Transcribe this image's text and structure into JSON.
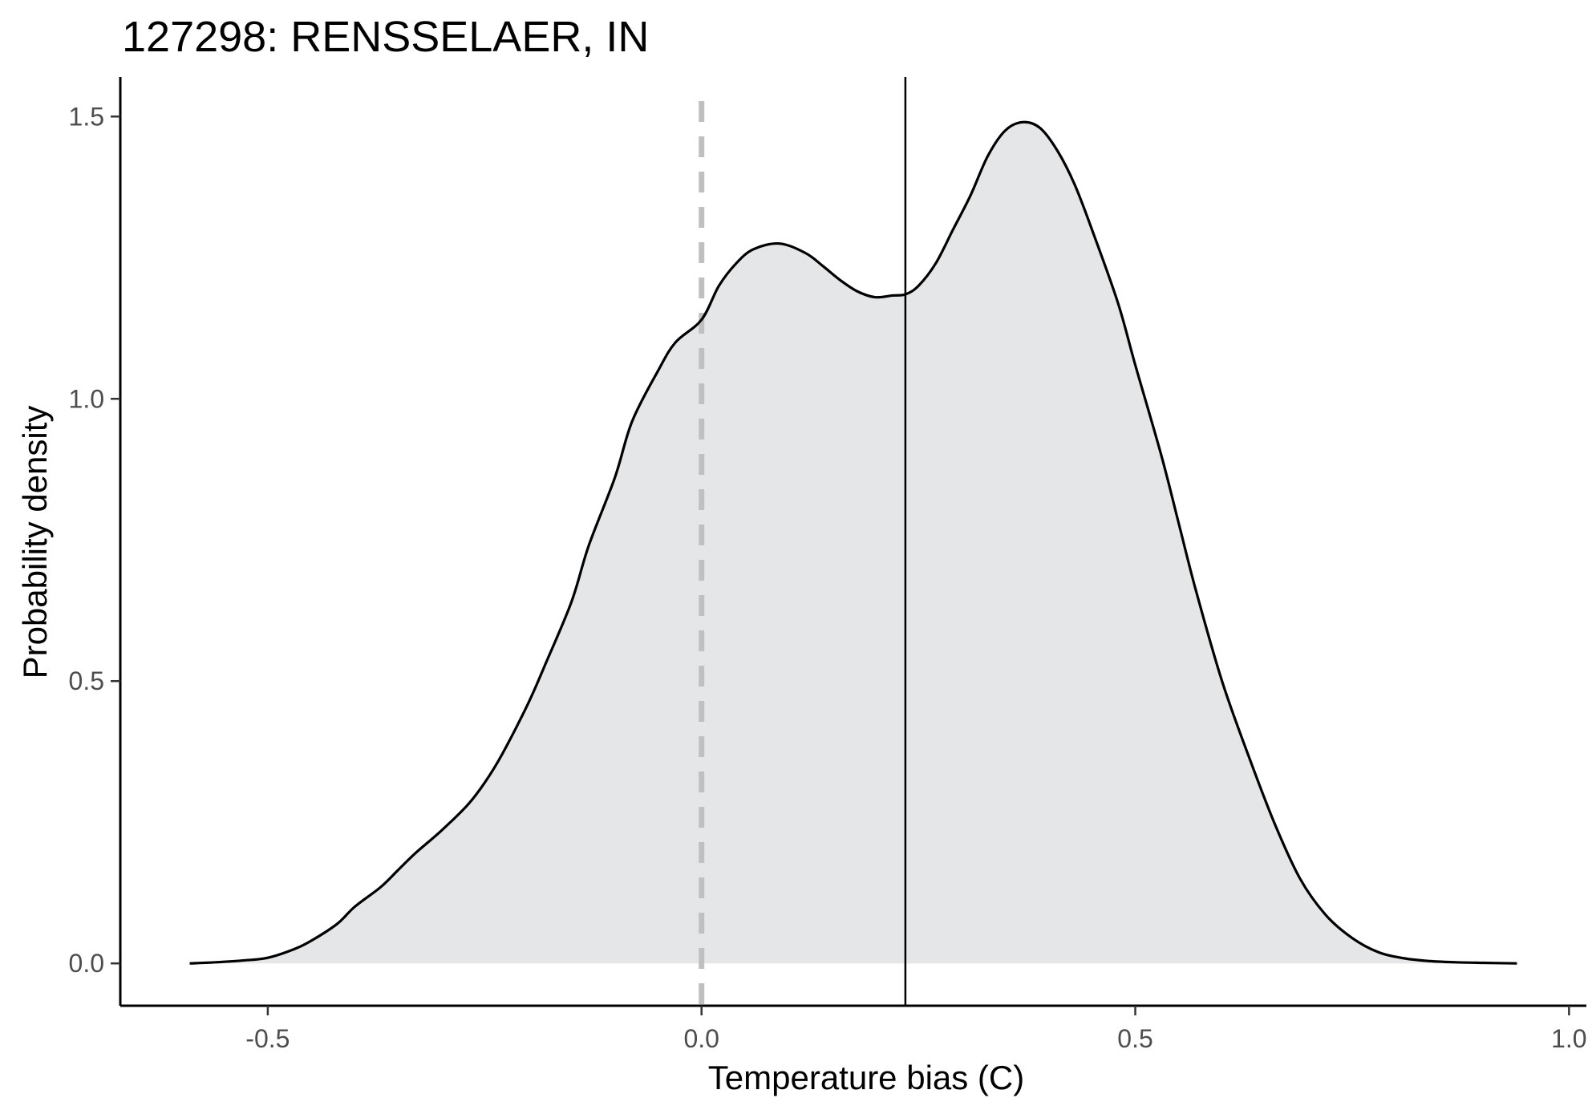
{
  "chart_data": {
    "type": "area",
    "title": "127298: RENSSELAER, IN",
    "xlabel": "Temperature bias (C)",
    "ylabel": "Probability density",
    "xlim": [
      -0.67,
      1.02
    ],
    "ylim": [
      -0.075,
      1.57
    ],
    "x_ticks": [
      -0.5,
      0.0,
      0.5,
      1.0
    ],
    "x_tick_labels": [
      "-0.5",
      "0.0",
      "0.5",
      "1.0"
    ],
    "y_ticks": [
      0.0,
      0.5,
      1.0,
      1.5
    ],
    "y_tick_labels": [
      "0.0",
      "0.5",
      "1.0",
      "1.5"
    ],
    "grid": false,
    "reference_lines": [
      {
        "x": 0.0,
        "style": "dashed",
        "color": "#c0c0c0"
      },
      {
        "x": 0.235,
        "style": "solid",
        "color": "#000000"
      }
    ],
    "fill_color": "#e5e6e7",
    "line_color": "#000000",
    "series": [
      {
        "x": [
          -0.59,
          -0.56,
          -0.53,
          -0.5,
          -0.47,
          -0.45,
          -0.42,
          -0.4,
          -0.37,
          -0.35,
          -0.33,
          -0.3,
          -0.27,
          -0.25,
          -0.23,
          -0.2,
          -0.18,
          -0.15,
          -0.13,
          -0.1,
          -0.08,
          -0.05,
          -0.03,
          0.0,
          0.02,
          0.04,
          0.06,
          0.09,
          0.12,
          0.14,
          0.16,
          0.18,
          0.2,
          0.22,
          0.235,
          0.25,
          0.27,
          0.29,
          0.31,
          0.33,
          0.35,
          0.37,
          0.39,
          0.41,
          0.43,
          0.45,
          0.48,
          0.5,
          0.53,
          0.55,
          0.57,
          0.6,
          0.63,
          0.66,
          0.69,
          0.72,
          0.75,
          0.78,
          0.81,
          0.84,
          0.87,
          0.9,
          0.94
        ],
        "y": [
          0.0,
          0.002,
          0.005,
          0.01,
          0.025,
          0.04,
          0.07,
          0.1,
          0.135,
          0.165,
          0.195,
          0.235,
          0.28,
          0.32,
          0.37,
          0.46,
          0.53,
          0.64,
          0.74,
          0.86,
          0.96,
          1.05,
          1.1,
          1.14,
          1.2,
          1.24,
          1.265,
          1.275,
          1.258,
          1.235,
          1.21,
          1.19,
          1.18,
          1.183,
          1.185,
          1.2,
          1.24,
          1.3,
          1.36,
          1.43,
          1.475,
          1.49,
          1.48,
          1.44,
          1.38,
          1.3,
          1.17,
          1.06,
          0.9,
          0.78,
          0.66,
          0.5,
          0.37,
          0.25,
          0.15,
          0.085,
          0.045,
          0.02,
          0.009,
          0.004,
          0.002,
          0.001,
          0.0
        ]
      }
    ]
  }
}
